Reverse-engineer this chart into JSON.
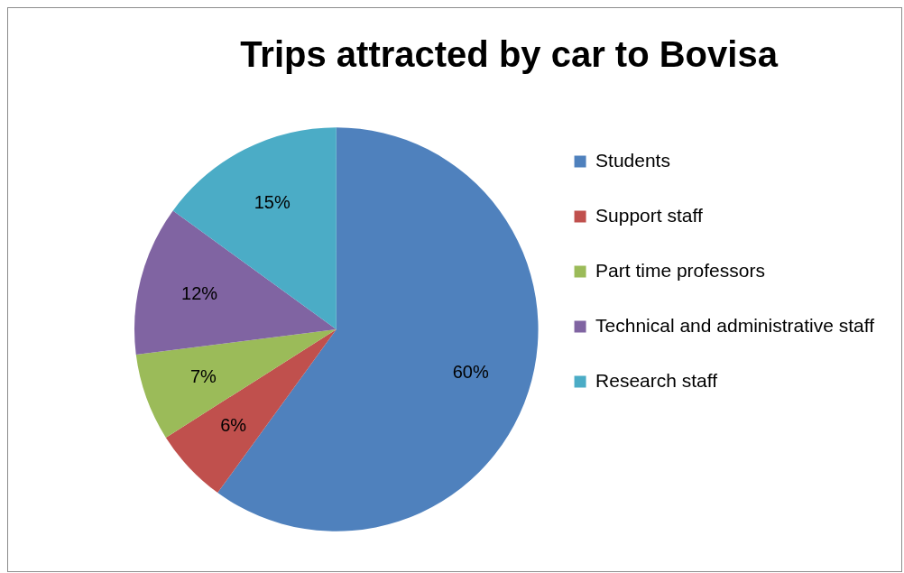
{
  "chart_data": {
    "type": "pie",
    "title": "Trips attracted by car to Bovisa",
    "categories": [
      "Students",
      "Support staff",
      "Part time professors",
      "Technical and administrative staff",
      "Research staff"
    ],
    "values": [
      60,
      6,
      7,
      12,
      15
    ],
    "value_labels": [
      "60%",
      "6%",
      "7%",
      "12%",
      "15%"
    ],
    "colors": [
      "#4f81bd",
      "#c0504d",
      "#9bbb59",
      "#8064a2",
      "#4bacc6"
    ],
    "legend": "right"
  }
}
